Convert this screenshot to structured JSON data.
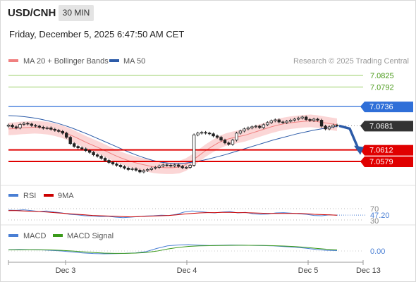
{
  "header": {
    "symbol": "USD/CNH",
    "timeframe": "30 MIN",
    "datetime": "Friday, December 5, 2025 6:47:50 AM CET"
  },
  "legend": {
    "ma20_label": "MA 20 + Bollinger Bands",
    "ma50_label": "MA 50",
    "credit": "Research © 2025 Trading Central",
    "rsi_label": "RSI",
    "rsi_ma_label": "9MA",
    "macd_label": "MACD",
    "macd_signal_label": "MACD Signal"
  },
  "colors": {
    "ma20": "#f08080",
    "ma50": "#2c5ba8",
    "bollinger_fill": "#fbd6d6",
    "support": "#e00000",
    "resistance_green": "#9bcf6a",
    "resistance_blue": "#2f6fd8",
    "current": "#333333",
    "arrow": "#2c5ba8",
    "rsi": "#4a7fd4",
    "rsi_ma": "#cc0000",
    "macd": "#4a7fd4",
    "macd_signal": "#3a9a1a"
  },
  "chart_data": [
    {
      "type": "candlestick",
      "title": "USD/CNH",
      "x_tick_labels": [
        "Dec 3",
        "Dec 4",
        "Dec 5",
        "Dec 13"
      ],
      "ylim": [
        7.053,
        7.086
      ],
      "levels": [
        {
          "value": 7.0825,
          "label": "7.0825",
          "kind": "resistance"
        },
        {
          "value": 7.0792,
          "label": "7.0792",
          "kind": "resistance"
        },
        {
          "value": 7.0736,
          "label": "7.0736",
          "kind": "pivot"
        },
        {
          "value": 7.0681,
          "label": "7.0681",
          "kind": "last"
        },
        {
          "value": 7.0612,
          "label": "7.0612",
          "kind": "support"
        },
        {
          "value": 7.0579,
          "label": "7.0579",
          "kind": "support"
        }
      ],
      "close_path": [
        7.0683,
        7.0678,
        7.0675,
        7.0685,
        7.0688,
        7.0686,
        7.0682,
        7.068,
        7.0677,
        7.0674,
        7.0675,
        7.0671,
        7.0668,
        7.0665,
        7.066,
        7.0648,
        7.063,
        7.0622,
        7.0618,
        7.0615,
        7.061,
        7.0605,
        7.0598,
        7.0594,
        7.0588,
        7.0582,
        7.0576,
        7.0572,
        7.0568,
        7.0564,
        7.056,
        7.0556,
        7.0558,
        7.0554,
        7.0549,
        7.0553,
        7.0556,
        7.056,
        7.0562,
        7.0566,
        7.0569,
        7.0568,
        7.0566,
        7.0569,
        7.0565,
        7.0561,
        7.0562,
        7.0568,
        7.0655,
        7.066,
        7.0662,
        7.066,
        7.0658,
        7.0652,
        7.0648,
        7.064,
        7.0632,
        7.0628,
        7.064,
        7.066,
        7.0666,
        7.0672,
        7.0675,
        7.0678,
        7.068,
        7.0676,
        7.0684,
        7.069,
        7.0695,
        7.0698,
        7.0692,
        7.069,
        7.0694,
        7.0697,
        7.07,
        7.0703,
        7.0706,
        7.0699,
        7.0696,
        7.07,
        7.0697,
        7.068,
        7.0672,
        7.0678,
        7.0683,
        7.0681
      ],
      "ma20_path": [
        7.0672,
        7.0673,
        7.0675,
        7.0676,
        7.0677,
        7.0676,
        7.0674,
        7.067,
        7.0665,
        7.0658,
        7.065,
        7.0641,
        7.0632,
        7.0624,
        7.0616,
        7.0607,
        7.0598,
        7.059,
        7.0583,
        7.0577,
        7.0572,
        7.0568,
        7.0564,
        7.0562,
        7.0561,
        7.0561,
        7.0563,
        7.057,
        7.0582,
        7.0596,
        7.061,
        7.0622,
        7.0633,
        7.0641,
        7.0646,
        7.065,
        7.0654,
        7.066,
        7.0666,
        7.0672,
        7.0678,
        7.0683,
        7.0687,
        7.069,
        7.0692,
        7.0694,
        7.0695,
        7.0693,
        7.069,
        7.0687,
        7.0684
      ],
      "ma50_path": [
        7.071,
        7.0709,
        7.0707,
        7.0704,
        7.07,
        7.0695,
        7.0689,
        7.0682,
        7.0674,
        7.0665,
        7.0656,
        7.0646,
        7.0636,
        7.0626,
        7.0616,
        7.0606,
        7.0597,
        7.0589,
        7.0582,
        7.0577,
        7.0574,
        7.0573,
        7.0574,
        7.0577,
        7.0581,
        7.0586,
        7.0592,
        7.0598,
        7.0605,
        7.0612,
        7.0619,
        7.0626,
        7.0633,
        7.064,
        7.0646,
        7.0652,
        7.0658,
        7.0663,
        7.0668,
        7.0672,
        7.0676,
        7.0679
      ],
      "bollinger_width": 0.0018
    },
    {
      "type": "line",
      "name": "RSI",
      "ylim": [
        25,
        80
      ],
      "levels": [
        {
          "value": 70,
          "label": "70"
        },
        {
          "value": 47.2,
          "label": "47.20"
        },
        {
          "value": 30,
          "label": "30"
        }
      ],
      "series": [
        {
          "name": "RSI",
          "values": [
            65,
            64,
            66,
            63,
            60,
            62,
            58,
            55,
            50,
            48,
            45,
            44,
            42,
            43,
            40,
            38,
            40,
            42,
            44,
            45,
            47,
            46,
            50,
            58,
            62,
            60,
            57,
            55,
            58,
            60,
            55,
            57,
            52,
            50,
            51,
            55,
            56,
            54,
            52,
            50,
            46,
            45,
            48,
            47
          ]
        },
        {
          "name": "9MA",
          "values": [
            63,
            63,
            62,
            61,
            60,
            58,
            56,
            54,
            52,
            50,
            48,
            46,
            45,
            44,
            43,
            42,
            41,
            42,
            43,
            44,
            45,
            46,
            48,
            51,
            53,
            55,
            56,
            56,
            57,
            57,
            56,
            56,
            55,
            54,
            53,
            53,
            53,
            53,
            53,
            52,
            50,
            49,
            48,
            47
          ]
        }
      ]
    },
    {
      "type": "line",
      "name": "MACD",
      "levels": [
        {
          "value": 0.0,
          "label": "0.00"
        }
      ],
      "series": [
        {
          "name": "MACD",
          "values": [
            0.2,
            0.25,
            0.22,
            0.18,
            0.1,
            0.0,
            -0.15,
            -0.3,
            -0.4,
            -0.45,
            -0.42,
            -0.38,
            -0.3,
            -0.1,
            0.4,
            0.8,
            0.95,
            1.0,
            0.92,
            0.86,
            0.9,
            0.95,
            0.92,
            0.88,
            0.85,
            0.8,
            0.7,
            0.6,
            0.45,
            0.25,
            0.1,
            0.05
          ]
        },
        {
          "name": "MACD Signal",
          "values": [
            0.18,
            0.2,
            0.21,
            0.2,
            0.16,
            0.1,
            0.0,
            -0.12,
            -0.24,
            -0.33,
            -0.38,
            -0.38,
            -0.34,
            -0.24,
            -0.02,
            0.3,
            0.55,
            0.72,
            0.8,
            0.84,
            0.86,
            0.89,
            0.9,
            0.89,
            0.87,
            0.84,
            0.78,
            0.7,
            0.58,
            0.42,
            0.28,
            0.18
          ]
        }
      ]
    }
  ]
}
